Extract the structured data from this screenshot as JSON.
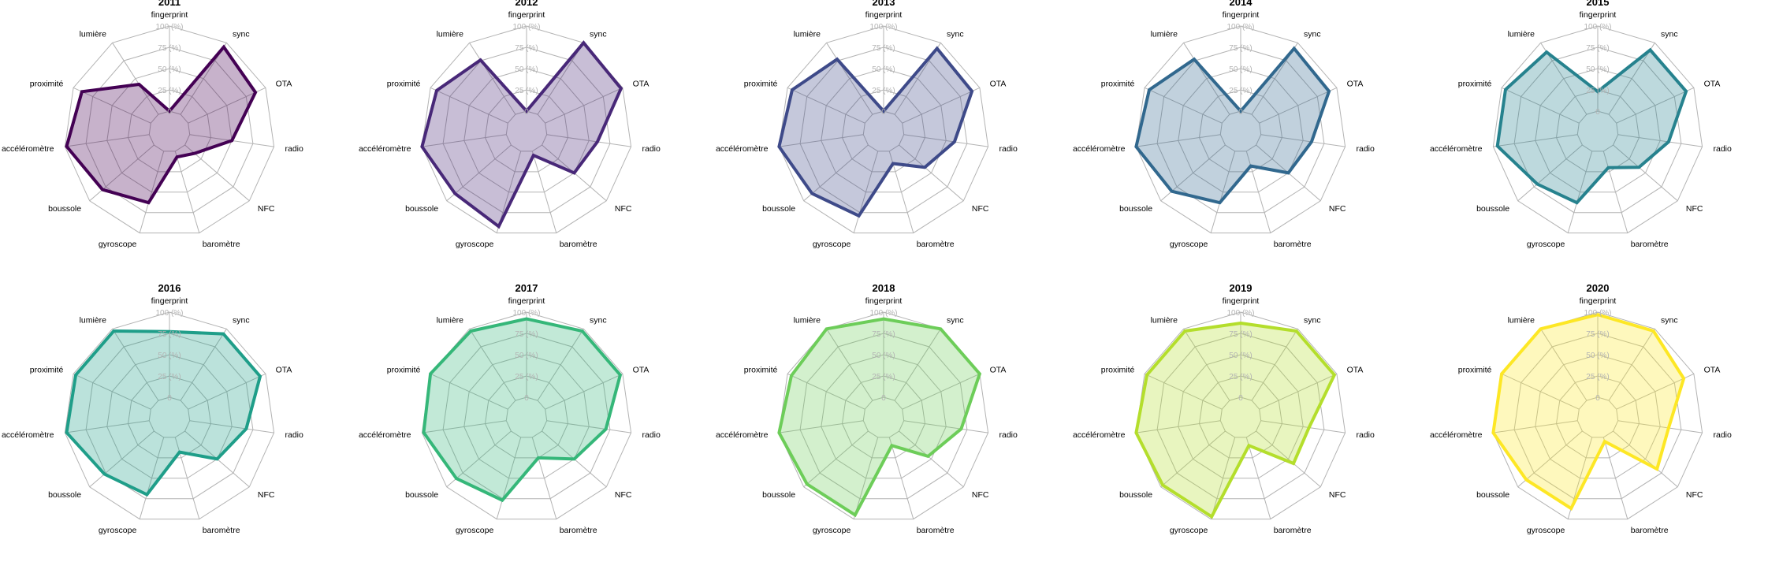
{
  "chart_data": {
    "type": "radar",
    "axes": [
      "fingerprint",
      "sync",
      "OTA",
      "radio",
      "NFC",
      "baromètre",
      "gyroscope",
      "boussole",
      "accéléromètre",
      "proximité",
      "lumière"
    ],
    "grid_levels": [
      0,
      25,
      50,
      75,
      100
    ],
    "grid_labels": [
      "0",
      "25 (%)",
      "50 (%)",
      "75 (%)",
      "100 (%)"
    ],
    "grid_label_color": "#b3b3b3",
    "grid_color": "#b3b3b3",
    "rlim": [
      0,
      100
    ],
    "panels": [
      {
        "title": "2011",
        "color": "#440154",
        "values": [
          0,
          94,
          87,
          50,
          15,
          7,
          63,
          80,
          98,
          89,
          42
        ]
      },
      {
        "title": "2012",
        "color": "#482878",
        "values": [
          0,
          100,
          98,
          60,
          50,
          5,
          92,
          87,
          100,
          92,
          76
        ]
      },
      {
        "title": "2013",
        "color": "#3E4A89",
        "values": [
          0,
          92,
          90,
          60,
          40,
          15,
          79,
          87,
          100,
          94,
          77
        ]
      },
      {
        "title": "2014",
        "color": "#31688E",
        "values": [
          0,
          92,
          90,
          60,
          50,
          18,
          63,
          83,
          100,
          94,
          77
        ]
      },
      {
        "title": "2015",
        "color": "#26828E",
        "values": [
          23,
          90,
          90,
          60,
          40,
          20,
          63,
          70,
          95,
          95,
          87
        ]
      },
      {
        "title": "2016",
        "color": "#1F9E89",
        "values": [
          77,
          93,
          93,
          67,
          50,
          18,
          70,
          77,
          98,
          97,
          97
        ]
      },
      {
        "title": "2017",
        "color": "#35B779",
        "values": [
          92,
          97,
          97,
          70,
          50,
          25,
          77,
          85,
          98,
          100,
          97
        ]
      },
      {
        "title": "2018",
        "color": "#6DCD59",
        "values": [
          92,
          100,
          100,
          68,
          45,
          10,
          95,
          95,
          100,
          95,
          100
        ]
      },
      {
        "title": "2019",
        "color": "#B4DE2C",
        "values": [
          87,
          97,
          97,
          57,
          58,
          10,
          97,
          97,
          100,
          97,
          97
        ]
      },
      {
        "title": "2020",
        "color": "#FDE725",
        "values": [
          97,
          97,
          87,
          60,
          68,
          5,
          87,
          87,
          100,
          100,
          100
        ]
      }
    ]
  }
}
